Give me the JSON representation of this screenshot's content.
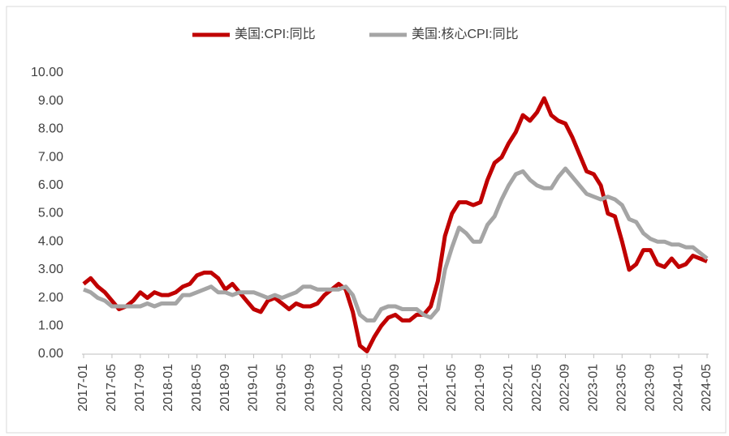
{
  "chart_data": {
    "type": "line",
    "categories": [
      "2017-01",
      null,
      null,
      null,
      "2017-05",
      null,
      null,
      null,
      "2017-09",
      null,
      null,
      null,
      "2018-01",
      null,
      null,
      null,
      "2018-05",
      null,
      null,
      null,
      "2018-09",
      null,
      null,
      null,
      "2019-01",
      null,
      null,
      null,
      "2019-05",
      null,
      null,
      null,
      "2019-09",
      null,
      null,
      null,
      "2020-01",
      null,
      null,
      null,
      "2020-05",
      null,
      null,
      null,
      "2020-09",
      null,
      null,
      null,
      "2021-01",
      null,
      null,
      null,
      "2021-05",
      null,
      null,
      null,
      "2021-09",
      null,
      null,
      null,
      "2022-01",
      null,
      null,
      null,
      "2022-05",
      null,
      null,
      null,
      "2022-09",
      null,
      null,
      null,
      "2023-01",
      null,
      null,
      null,
      "2023-05",
      null,
      null,
      null,
      "2023-09",
      null,
      null,
      null,
      "2024-01",
      null,
      null,
      null,
      "2024-05"
    ],
    "series": [
      {
        "name": "美国:CPI:同比",
        "color": "#c00000",
        "values": [
          2.5,
          2.7,
          2.4,
          2.2,
          1.9,
          1.6,
          1.7,
          1.9,
          2.2,
          2.0,
          2.2,
          2.1,
          2.1,
          2.2,
          2.4,
          2.5,
          2.8,
          2.9,
          2.9,
          2.7,
          2.3,
          2.5,
          2.2,
          1.9,
          1.6,
          1.5,
          1.9,
          2.0,
          1.8,
          1.6,
          1.8,
          1.7,
          1.7,
          1.8,
          2.1,
          2.3,
          2.5,
          2.3,
          1.5,
          0.3,
          0.1,
          0.6,
          1.0,
          1.3,
          1.4,
          1.2,
          1.2,
          1.4,
          1.4,
          1.7,
          2.6,
          4.2,
          5.0,
          5.4,
          5.4,
          5.3,
          5.4,
          6.2,
          6.8,
          7.0,
          7.5,
          7.9,
          8.5,
          8.3,
          8.6,
          9.1,
          8.5,
          8.3,
          8.2,
          7.7,
          7.1,
          6.5,
          6.4,
          6.0,
          5.0,
          4.9,
          4.0,
          3.0,
          3.2,
          3.7,
          3.7,
          3.2,
          3.1,
          3.4,
          3.1,
          3.2,
          3.5,
          3.4,
          3.3
        ]
      },
      {
        "name": "美国:核心CPI:同比",
        "color": "#a5a5a5",
        "values": [
          2.3,
          2.2,
          2.0,
          1.9,
          1.7,
          1.7,
          1.7,
          1.7,
          1.7,
          1.8,
          1.7,
          1.8,
          1.8,
          1.8,
          2.1,
          2.1,
          2.2,
          2.3,
          2.4,
          2.2,
          2.2,
          2.1,
          2.2,
          2.2,
          2.2,
          2.1,
          2.0,
          2.1,
          2.0,
          2.1,
          2.2,
          2.4,
          2.4,
          2.3,
          2.3,
          2.3,
          2.3,
          2.4,
          2.1,
          1.4,
          1.2,
          1.2,
          1.6,
          1.7,
          1.7,
          1.6,
          1.6,
          1.6,
          1.4,
          1.3,
          1.6,
          3.0,
          3.8,
          4.5,
          4.3,
          4.0,
          4.0,
          4.6,
          4.9,
          5.5,
          6.0,
          6.4,
          6.5,
          6.2,
          6.0,
          5.9,
          5.9,
          6.3,
          6.6,
          6.3,
          6.0,
          5.7,
          5.6,
          5.5,
          5.6,
          5.5,
          5.3,
          4.8,
          4.7,
          4.3,
          4.1,
          4.0,
          4.0,
          3.9,
          3.9,
          3.8,
          3.8,
          3.6,
          3.4
        ]
      }
    ],
    "ylim": [
      0,
      10
    ],
    "yticks": [
      {
        "value": 0,
        "label": "0.00"
      },
      {
        "value": 1,
        "label": "1.00"
      },
      {
        "value": 2,
        "label": "2.00"
      },
      {
        "value": 3,
        "label": "3.00"
      },
      {
        "value": 4,
        "label": "4.00"
      },
      {
        "value": 5,
        "label": "5.00"
      },
      {
        "value": 6,
        "label": "6.00"
      },
      {
        "value": 7,
        "label": "7.00"
      },
      {
        "value": 8,
        "label": "8.00"
      },
      {
        "value": 9,
        "label": "9.00"
      },
      {
        "value": 10,
        "label": "10.00"
      }
    ],
    "grid": false,
    "legend": "top"
  }
}
